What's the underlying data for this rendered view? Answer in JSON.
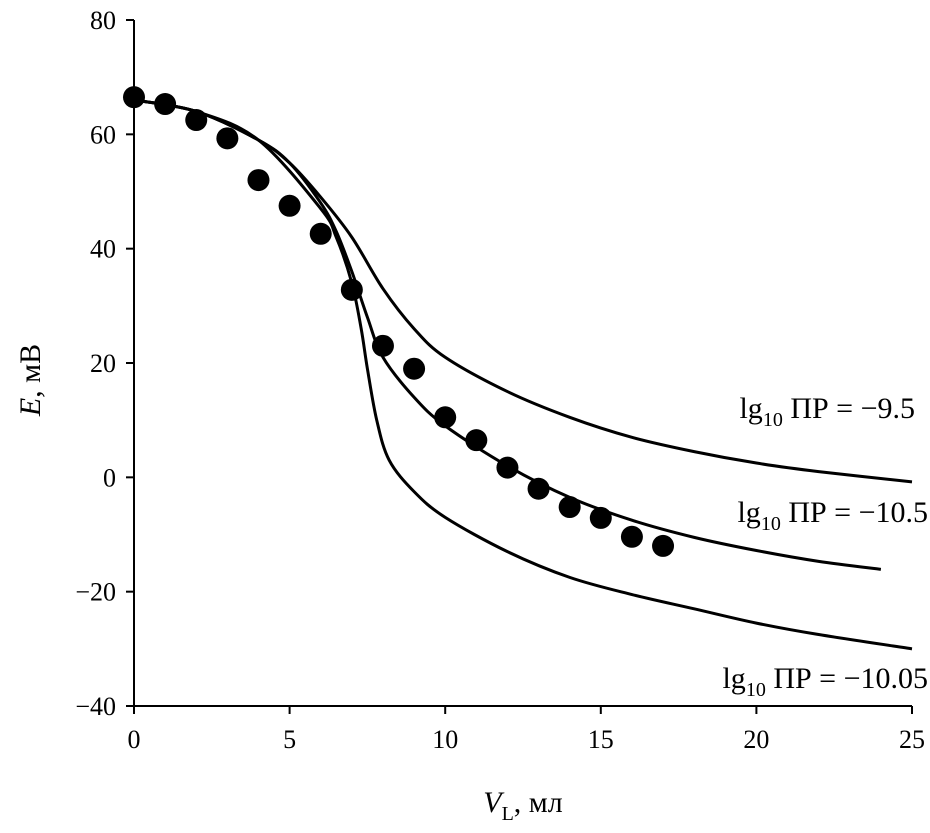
{
  "chart_data": {
    "type": "line",
    "xlabel": {
      "symbol": "V",
      "subscript": "L",
      "unit": ", мл"
    },
    "ylabel": {
      "symbol": "E",
      "unit": ", мВ"
    },
    "xlim": [
      0,
      25
    ],
    "ylim": [
      -40,
      80
    ],
    "xticks": [
      "0",
      "5",
      "10",
      "15",
      "20",
      "25"
    ],
    "yticks": [
      "80",
      "60",
      "40",
      "20",
      "0",
      "−20",
      "−40"
    ],
    "grid": false,
    "points": {
      "marker": "filled-circle",
      "x": [
        0,
        1,
        2,
        3,
        4,
        5,
        6,
        7,
        8,
        9,
        10,
        11,
        12,
        13,
        14,
        15,
        16,
        17
      ],
      "y": [
        66.5,
        65.3,
        62.5,
        59.3,
        52,
        47.5,
        42.6,
        32.8,
        23,
        19,
        10.5,
        6.5,
        1.7,
        -2,
        -5.2,
        -7.1,
        -10.4,
        -12
      ]
    },
    "series": [
      {
        "name": {
          "prefix": "lg",
          "sub": "10",
          "rest": " ПР = −9.5"
        },
        "x": [
          0,
          2,
          4,
          5,
          6,
          7,
          8,
          9,
          10,
          12,
          14,
          16,
          18,
          20,
          22,
          25
        ],
        "y": [
          66,
          64,
          59,
          55,
          49,
          42,
          33,
          26,
          21,
          15,
          10.5,
          7,
          4.5,
          2.5,
          1,
          -0.8
        ]
      },
      {
        "name": {
          "prefix": "lg",
          "sub": "10",
          "rest": " ПР = −10.5"
        },
        "x": [
          0,
          2,
          4,
          5,
          6,
          6.5,
          7,
          7.5,
          8,
          9,
          10,
          12,
          14,
          16,
          18,
          20,
          22,
          24
        ],
        "y": [
          66,
          64,
          59,
          55,
          48,
          43,
          36,
          28,
          21,
          14,
          9,
          2,
          -3.5,
          -7.5,
          -10.5,
          -12.8,
          -14.7,
          -16.1
        ]
      },
      {
        "name": {
          "prefix": "lg",
          "sub": "10",
          "rest": " ПР = −10.05"
        },
        "x": [
          0,
          2,
          4,
          6,
          6.5,
          7,
          7.3,
          7.5,
          7.8,
          8.2,
          9,
          10,
          12,
          14,
          16,
          18,
          20,
          22,
          25
        ],
        "y": [
          66,
          64,
          59,
          47,
          42,
          34,
          26,
          19,
          10,
          3,
          -2.5,
          -7,
          -13,
          -17.5,
          -20.5,
          -23,
          -25.5,
          -27.5,
          -30
        ]
      }
    ]
  }
}
